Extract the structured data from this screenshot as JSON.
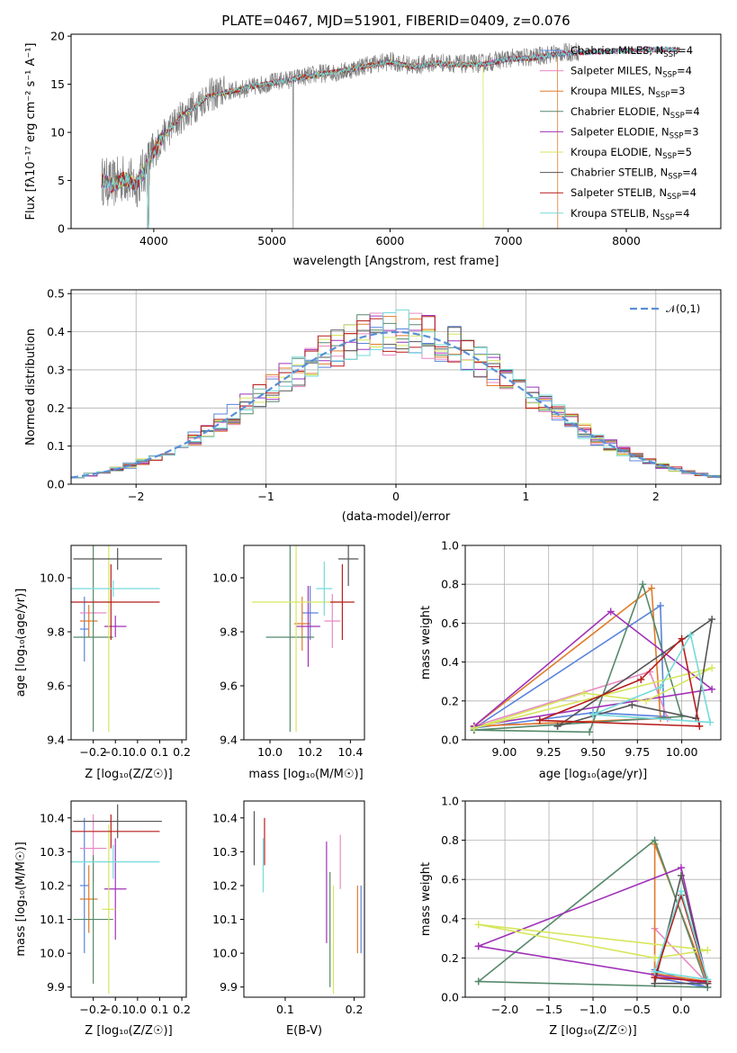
{
  "chart_data": [
    {
      "type": "line",
      "title": "PLATE=0467, MJD=51901, FIBERID=0409, z=0.076",
      "xlabel": "wavelength [Angstrom, rest frame]",
      "ylabel": "Flux [fλ10⁻¹⁷ erg cm⁻² s⁻¹ A⁻¹]",
      "xlim": [
        3300,
        8800
      ],
      "ylim": [
        0,
        20.2
      ],
      "xticks": [
        4000,
        5000,
        6000,
        7000,
        8000
      ],
      "yticks": [
        0,
        5,
        10,
        15,
        20
      ],
      "legend_position": "upper-right",
      "series": [
        {
          "name": "Chabrier MILES, N",
          "sub": "SSP",
          "suffix": "=4",
          "color": "#5a83dd"
        },
        {
          "name": "Salpeter MILES, N",
          "sub": "SSP",
          "suffix": "=4",
          "color": "#e68ac3"
        },
        {
          "name": "Kroupa MILES, N",
          "sub": "SSP",
          "suffix": "=3",
          "color": "#e07c2c"
        },
        {
          "name": "Chabrier ELODIE, N",
          "sub": "SSP",
          "suffix": "=4",
          "color": "#56896b"
        },
        {
          "name": "Salpeter ELODIE, N",
          "sub": "SSP",
          "suffix": "=3",
          "color": "#a032b8"
        },
        {
          "name": "Kroupa ELODIE, N",
          "sub": "SSP",
          "suffix": "=5",
          "color": "#d6e65c"
        },
        {
          "name": "Chabrier STELIB, N",
          "sub": "SSP",
          "suffix": "=4",
          "color": "#555555"
        },
        {
          "name": "Salpeter STELIB, N",
          "sub": "SSP",
          "suffix": "=4",
          "color": "#b81c1c"
        },
        {
          "name": "Kroupa STELIB, N",
          "sub": "SSP",
          "suffix": "=4",
          "color": "#76dada"
        }
      ],
      "observed_spectrum": {
        "color": "#808080",
        "x": [
          3560,
          3650,
          3750,
          3850,
          3950,
          4050,
          4150,
          4250,
          4350,
          4450,
          4600,
          4800,
          5000,
          5200,
          5400,
          5600,
          5800,
          6000,
          6200,
          6400,
          6600,
          6800,
          7000,
          7200,
          7400,
          7600
        ],
        "y": [
          5.0,
          4.6,
          5.3,
          4.5,
          6.8,
          9.0,
          10.6,
          11.8,
          12.7,
          13.8,
          14.2,
          14.6,
          15.2,
          15.6,
          16.1,
          16.3,
          17.0,
          17.4,
          16.9,
          17.3,
          17.1,
          17.2,
          17.7,
          17.8,
          18.2,
          18.4
        ]
      },
      "model_spectrum_x": [
        3560,
        3650,
        3750,
        3850,
        3950,
        4050,
        4150,
        4250,
        4350,
        4450,
        4600,
        4800,
        5000,
        5200,
        5400,
        5600,
        5800,
        6000,
        6200,
        6400,
        6600,
        6800,
        7000,
        7200,
        7400,
        7600,
        7800,
        8000,
        8200,
        8400
      ],
      "model_spectrum_y": [
        5.0,
        4.5,
        5.2,
        4.6,
        6.6,
        9.2,
        10.5,
        11.9,
        12.6,
        13.7,
        14.1,
        14.7,
        15.1,
        15.6,
        16.0,
        16.4,
        16.9,
        17.3,
        16.8,
        17.2,
        17.0,
        17.1,
        17.6,
        17.7,
        18.1,
        18.3,
        18.4,
        18.5,
        18.6,
        18.6
      ]
    },
    {
      "type": "histogram",
      "xlabel": "(data-model)/error",
      "ylabel": "Normed distribution",
      "xlim": [
        -2.5,
        2.5
      ],
      "ylim": [
        0,
        0.51
      ],
      "xticks": [
        -2,
        -1,
        0,
        1,
        2
      ],
      "yticks": [
        0.0,
        0.1,
        0.2,
        0.3,
        0.4,
        0.5
      ],
      "grid": true,
      "reference": {
        "name": "𝒩(0,1)",
        "color": "#5a8fd6"
      }
    },
    {
      "type": "errorbar",
      "xlabel": "Z [log10(Z/Z☉)]",
      "ylabel": "age  [log10(age/yr)]",
      "xlim": [
        -0.3,
        0.22
      ],
      "ylim": [
        9.4,
        10.12
      ],
      "xticks": [
        -0.2,
        -0.1,
        0.0,
        0.1,
        0.2
      ],
      "yticks": [
        9.4,
        9.6,
        9.8,
        10.0
      ],
      "points": [
        {
          "series": "Chabrier MILES",
          "x": -0.24,
          "xerr": 0.02,
          "y": 9.81,
          "yerr": 0.12
        },
        {
          "series": "Salpeter MILES",
          "x": -0.2,
          "xerr": 0.06,
          "y": 9.87,
          "yerr": 0.05
        },
        {
          "series": "Kroupa MILES",
          "x": -0.22,
          "xerr": 0.04,
          "y": 9.84,
          "yerr": 0.06
        },
        {
          "series": "Chabrier ELODIE",
          "x": -0.2,
          "xerr": 0.09,
          "y": 9.78,
          "yerr": 0.35
        },
        {
          "series": "Salpeter ELODIE",
          "x": -0.1,
          "xerr": 0.05,
          "y": 9.82,
          "yerr": 0.04
        },
        {
          "series": "Kroupa ELODIE",
          "x": -0.13,
          "xerr": 0.03,
          "y": 9.91,
          "yerr": 0.48
        },
        {
          "series": "Chabrier STELIB",
          "x": -0.09,
          "xerr": 0.2,
          "y": 10.07,
          "yerr": 0.04
        },
        {
          "series": "Salpeter STELIB",
          "x": -0.12,
          "xerr": 0.22,
          "y": 9.91,
          "yerr": 0.14
        },
        {
          "series": "Kroupa STELIB",
          "x": -0.11,
          "xerr": 0.21,
          "y": 9.96,
          "yerr": 0.03
        }
      ]
    },
    {
      "type": "errorbar",
      "xlabel": "mass [log10(M/M☉)]",
      "xlim": [
        9.87,
        10.47
      ],
      "ylim": [
        9.4,
        10.12
      ],
      "xticks": [
        10.0,
        10.2,
        10.4
      ],
      "yticks": [
        9.4,
        9.6,
        9.8,
        10.0
      ],
      "points": [
        {
          "series": "Chabrier MILES",
          "x": 10.2,
          "xerr": 0.04,
          "y": 9.87,
          "yerr": 0.1
        },
        {
          "series": "Salpeter MILES",
          "x": 10.31,
          "xerr": 0.04,
          "y": 9.84,
          "yerr": 0.1
        },
        {
          "series": "Kroupa MILES",
          "x": 10.16,
          "xerr": 0.04,
          "y": 9.83,
          "yerr": 0.1
        },
        {
          "series": "Chabrier ELODIE",
          "x": 10.1,
          "xerr": 0.12,
          "y": 9.78,
          "yerr": 0.35
        },
        {
          "series": "Salpeter ELODIE",
          "x": 10.19,
          "xerr": 0.06,
          "y": 9.82,
          "yerr": 0.15
        },
        {
          "series": "Kroupa ELODIE",
          "x": 10.13,
          "xerr": 0.22,
          "y": 9.91,
          "yerr": 0.48
        },
        {
          "series": "Chabrier STELIB",
          "x": 10.39,
          "xerr": 0.05,
          "y": 10.07,
          "yerr": 0.1
        },
        {
          "series": "Salpeter STELIB",
          "x": 10.36,
          "xerr": 0.06,
          "y": 9.91,
          "yerr": 0.14
        },
        {
          "series": "Kroupa STELIB",
          "x": 10.27,
          "xerr": 0.04,
          "y": 9.96,
          "yerr": 0.1
        }
      ]
    },
    {
      "type": "line",
      "xlabel": "age  [log10(age/yr)]",
      "ylabel": "mass weight",
      "xlim": [
        8.78,
        10.22
      ],
      "ylim": [
        0,
        1.0
      ],
      "xticks": [
        9.0,
        9.25,
        9.5,
        9.75,
        10.0
      ],
      "yticks": [
        0.0,
        0.2,
        0.4,
        0.6,
        0.8,
        1.0
      ],
      "grid": true,
      "series": [
        {
          "name": "Chabrier MILES",
          "x": [
            8.83,
            9.5,
            9.9,
            9.88,
            8.83
          ],
          "y": [
            0.06,
            0.14,
            0.12,
            0.69,
            0.06
          ]
        },
        {
          "name": "Salpeter MILES",
          "x": [
            8.83,
            9.82,
            9.92,
            8.83
          ],
          "y": [
            0.07,
            0.35,
            0.11,
            0.07
          ]
        },
        {
          "name": "Kroupa MILES",
          "x": [
            8.83,
            9.83,
            9.88,
            8.83
          ],
          "y": [
            0.07,
            0.78,
            0.11,
            0.07
          ]
        },
        {
          "name": "Chabrier ELODIE",
          "x": [
            8.83,
            9.48,
            9.78,
            10.0,
            8.83
          ],
          "y": [
            0.05,
            0.04,
            0.8,
            0.12,
            0.05
          ]
        },
        {
          "name": "Salpeter ELODIE",
          "x": [
            8.83,
            9.6,
            10.17,
            8.83
          ],
          "y": [
            0.07,
            0.66,
            0.26,
            0.07
          ]
        },
        {
          "name": "Kroupa ELODIE",
          "x": [
            8.83,
            9.45,
            9.8,
            10.17,
            8.83
          ],
          "y": [
            0.06,
            0.24,
            0.2,
            0.37,
            0.06
          ]
        },
        {
          "name": "Chabrier STELIB",
          "x": [
            9.3,
            9.72,
            10.08,
            10.17,
            9.3
          ],
          "y": [
            0.07,
            0.18,
            0.11,
            0.62,
            0.07
          ]
        },
        {
          "name": "Salpeter STELIB",
          "x": [
            9.2,
            9.77,
            10.0,
            10.1,
            9.2
          ],
          "y": [
            0.1,
            0.31,
            0.52,
            0.07,
            0.1
          ]
        },
        {
          "name": "Kroupa STELIB",
          "x": [
            9.5,
            9.88,
            10.05,
            10.16,
            9.5
          ],
          "y": [
            0.13,
            0.27,
            0.54,
            0.09,
            0.13
          ]
        }
      ]
    },
    {
      "type": "errorbar",
      "xlabel": "Z [log10(Z/Z☉)]",
      "ylabel": "mass [log10(M/M☉)]",
      "xlim": [
        -0.3,
        0.22
      ],
      "ylim": [
        9.87,
        10.45
      ],
      "xticks": [
        -0.2,
        -0.1,
        0.0,
        0.1,
        0.2
      ],
      "yticks": [
        9.9,
        10.0,
        10.1,
        10.2,
        10.3,
        10.4
      ],
      "points": [
        {
          "series": "Chabrier MILES",
          "x": -0.24,
          "xerr": 0.02,
          "y": 10.2,
          "yerr": 0.2
        },
        {
          "series": "Salpeter MILES",
          "x": -0.2,
          "xerr": 0.06,
          "y": 10.31,
          "yerr": 0.1
        },
        {
          "series": "Kroupa MILES",
          "x": -0.22,
          "xerr": 0.04,
          "y": 10.16,
          "yerr": 0.1
        },
        {
          "series": "Chabrier ELODIE",
          "x": -0.2,
          "xerr": 0.09,
          "y": 10.1,
          "yerr": 0.19
        },
        {
          "series": "Salpeter ELODIE",
          "x": -0.1,
          "xerr": 0.05,
          "y": 10.19,
          "yerr": 0.15
        },
        {
          "series": "Kroupa ELODIE",
          "x": -0.13,
          "xerr": 0.03,
          "y": 10.13,
          "yerr": 0.25
        },
        {
          "series": "Chabrier STELIB",
          "x": -0.09,
          "xerr": 0.2,
          "y": 10.39,
          "yerr": 0.05
        },
        {
          "series": "Salpeter STELIB",
          "x": -0.12,
          "xerr": 0.22,
          "y": 10.36,
          "yerr": 0.05
        },
        {
          "series": "Kroupa STELIB",
          "x": -0.11,
          "xerr": 0.21,
          "y": 10.27,
          "yerr": 0.05
        }
      ]
    },
    {
      "type": "errorbar",
      "xlabel": "E(B-V)",
      "xlim": [
        0.04,
        0.215
      ],
      "ylim": [
        9.87,
        10.45
      ],
      "xticks": [
        0.1,
        0.2
      ],
      "yticks": [
        9.9,
        10.0,
        10.1,
        10.2,
        10.3,
        10.4
      ],
      "points": [
        {
          "series": "Chabrier MILES",
          "x": 0.21,
          "y": 10.1,
          "yerr": 0.1
        },
        {
          "series": "Salpeter MILES",
          "x": 0.18,
          "y": 10.27,
          "yerr": 0.08
        },
        {
          "series": "Kroupa MILES",
          "x": 0.205,
          "y": 10.1,
          "yerr": 0.1
        },
        {
          "series": "Chabrier ELODIE",
          "x": 0.165,
          "y": 10.07,
          "yerr": 0.17
        },
        {
          "series": "Salpeter ELODIE",
          "x": 0.16,
          "y": 10.18,
          "yerr": 0.15
        },
        {
          "series": "Kroupa ELODIE",
          "x": 0.17,
          "y": 10.04,
          "yerr": 0.16
        },
        {
          "series": "Chabrier STELIB",
          "x": 0.055,
          "y": 10.34,
          "yerr": 0.08
        },
        {
          "series": "Salpeter STELIB",
          "x": 0.07,
          "y": 10.33,
          "yerr": 0.07
        },
        {
          "series": "Kroupa STELIB",
          "x": 0.068,
          "y": 10.26,
          "yerr": 0.08
        }
      ]
    },
    {
      "type": "line",
      "xlabel": "Z [log10(Z/Z☉)]",
      "ylabel": "mass weight",
      "xlim": [
        -2.45,
        0.45
      ],
      "ylim": [
        0,
        1.0
      ],
      "xticks": [
        -2.0,
        -1.5,
        -1.0,
        -0.5,
        0.0
      ],
      "yticks": [
        0.0,
        0.2,
        0.4,
        0.6,
        0.8,
        1.0
      ],
      "grid": true,
      "series": [
        {
          "name": "Chabrier MILES",
          "x": [
            -0.3,
            -0.3,
            0.3,
            -0.3
          ],
          "y": [
            0.1,
            0.14,
            0.05,
            0.1
          ]
        },
        {
          "name": "Salpeter MILES",
          "x": [
            -0.3,
            -0.3,
            0.3,
            -0.3
          ],
          "y": [
            0.11,
            0.35,
            0.07,
            0.11
          ]
        },
        {
          "name": "Kroupa MILES",
          "x": [
            -0.3,
            -0.3,
            0.3,
            -0.3
          ],
          "y": [
            0.12,
            0.78,
            0.08,
            0.12
          ]
        },
        {
          "name": "Chabrier ELODIE",
          "x": [
            -2.3,
            -0.3,
            0.3,
            -2.3
          ],
          "y": [
            0.08,
            0.8,
            0.05,
            0.08
          ]
        },
        {
          "name": "Salpeter ELODIE",
          "x": [
            -2.3,
            0.0,
            0.3,
            -2.3
          ],
          "y": [
            0.26,
            0.66,
            0.07,
            0.26
          ]
        },
        {
          "name": "Kroupa ELODIE",
          "x": [
            -2.3,
            -0.3,
            0.3,
            -2.3
          ],
          "y": [
            0.37,
            0.2,
            0.24,
            0.37
          ]
        },
        {
          "name": "Chabrier STELIB",
          "x": [
            -0.3,
            0.0,
            0.3,
            -0.3
          ],
          "y": [
            0.07,
            0.62,
            0.07,
            0.07
          ]
        },
        {
          "name": "Salpeter STELIB",
          "x": [
            -0.3,
            0.0,
            0.3,
            -0.3
          ],
          "y": [
            0.1,
            0.52,
            0.08,
            0.1
          ]
        },
        {
          "name": "Kroupa STELIB",
          "x": [
            -0.3,
            0.0,
            0.3,
            -0.3
          ],
          "y": [
            0.13,
            0.54,
            0.09,
            0.13
          ]
        }
      ]
    }
  ]
}
